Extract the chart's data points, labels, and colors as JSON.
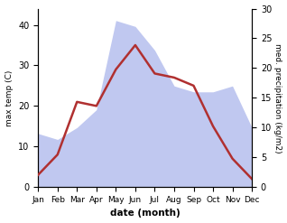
{
  "months": [
    "Jan",
    "Feb",
    "Mar",
    "Apr",
    "May",
    "Jun",
    "Jul",
    "Aug",
    "Sep",
    "Oct",
    "Nov",
    "Dec"
  ],
  "temperature": [
    3,
    8,
    21,
    20,
    29,
    35,
    28,
    27,
    25,
    15,
    7,
    2
  ],
  "precipitation": [
    9,
    8,
    10,
    13,
    28,
    27,
    23,
    17,
    16,
    16,
    17,
    10
  ],
  "temp_color": "#b03030",
  "precip_fill_color": "#c0c8f0",
  "xlabel": "date (month)",
  "ylabel_left": "max temp (C)",
  "ylabel_right": "med. precipitation (kg/m2)",
  "ylim_left": [
    0,
    44
  ],
  "ylim_right": [
    0,
    30
  ],
  "yticks_left": [
    0,
    10,
    20,
    30,
    40
  ],
  "yticks_right": [
    0,
    5,
    10,
    15,
    20,
    25,
    30
  ],
  "bg_color": "#ffffff",
  "line_width": 1.8
}
